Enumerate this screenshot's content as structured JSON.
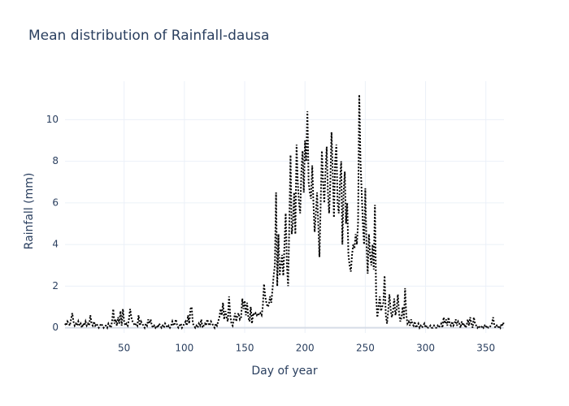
{
  "chart_data": {
    "type": "line",
    "title": "Mean distribution of Rainfall-dausa",
    "xlabel": "Day of year",
    "ylabel": "Rainfall (mm)",
    "color": "#000000",
    "dash": "dot",
    "grid": true,
    "xlim": [
      1,
      365
    ],
    "ylim": [
      -0.25,
      11.85
    ],
    "xticks": [
      50,
      100,
      150,
      200,
      250,
      300,
      350
    ],
    "yticks": [
      0,
      2,
      4,
      6,
      8,
      10
    ],
    "x": [
      1,
      2,
      3,
      4,
      5,
      6,
      7,
      8,
      9,
      10,
      11,
      12,
      13,
      14,
      15,
      16,
      17,
      18,
      19,
      20,
      21,
      22,
      23,
      24,
      25,
      26,
      27,
      28,
      29,
      30,
      31,
      32,
      33,
      34,
      35,
      36,
      37,
      38,
      39,
      40,
      41,
      42,
      43,
      44,
      45,
      46,
      47,
      48,
      49,
      50,
      51,
      52,
      53,
      54,
      55,
      56,
      57,
      58,
      59,
      60,
      61,
      62,
      63,
      64,
      65,
      66,
      67,
      68,
      69,
      70,
      71,
      72,
      73,
      74,
      75,
      76,
      77,
      78,
      79,
      80,
      81,
      82,
      83,
      84,
      85,
      86,
      87,
      88,
      89,
      90,
      91,
      92,
      93,
      94,
      95,
      96,
      97,
      98,
      99,
      100,
      101,
      102,
      103,
      104,
      105,
      106,
      107,
      108,
      109,
      110,
      111,
      112,
      113,
      114,
      115,
      116,
      117,
      118,
      119,
      120,
      121,
      122,
      123,
      124,
      125,
      126,
      127,
      128,
      129,
      130,
      131,
      132,
      133,
      134,
      135,
      136,
      137,
      138,
      139,
      140,
      141,
      142,
      143,
      144,
      145,
      146,
      147,
      148,
      149,
      150,
      151,
      152,
      153,
      154,
      155,
      156,
      157,
      158,
      159,
      160,
      161,
      162,
      163,
      164,
      165,
      166,
      167,
      168,
      169,
      170,
      171,
      172,
      173,
      174,
      175,
      176,
      177,
      178,
      179,
      180,
      181,
      182,
      183,
      184,
      185,
      186,
      187,
      188,
      189,
      190,
      191,
      192,
      193,
      194,
      195,
      196,
      197,
      198,
      199,
      200,
      201,
      202,
      203,
      204,
      205,
      206,
      207,
      208,
      209,
      210,
      211,
      212,
      213,
      214,
      215,
      216,
      217,
      218,
      219,
      220,
      221,
      222,
      223,
      224,
      225,
      226,
      227,
      228,
      229,
      230,
      231,
      232,
      233,
      234,
      235,
      236,
      237,
      238,
      239,
      240,
      241,
      242,
      243,
      244,
      245,
      246,
      247,
      248,
      249,
      250,
      251,
      252,
      253,
      254,
      255,
      256,
      257,
      258,
      259,
      260,
      261,
      262,
      263,
      264,
      265,
      266,
      267,
      268,
      269,
      270,
      271,
      272,
      273,
      274,
      275,
      276,
      277,
      278,
      279,
      280,
      281,
      282,
      283,
      284,
      285,
      286,
      287,
      288,
      289,
      290,
      291,
      292,
      293,
      294,
      295,
      296,
      297,
      298,
      299,
      300,
      301,
      302,
      303,
      304,
      305,
      306,
      307,
      308,
      309,
      310,
      311,
      312,
      313,
      314,
      315,
      316,
      317,
      318,
      319,
      320,
      321,
      322,
      323,
      324,
      325,
      326,
      327,
      328,
      329,
      330,
      331,
      332,
      333,
      334,
      335,
      336,
      337,
      338,
      339,
      340,
      341,
      342,
      343,
      344,
      345,
      346,
      347,
      348,
      349,
      350,
      351,
      352,
      353,
      354,
      355,
      356,
      357,
      358,
      359,
      360,
      361,
      362,
      363,
      364,
      365
    ],
    "values": [
      0.2,
      0.1,
      0.3,
      0.2,
      0.1,
      0.4,
      0.7,
      0.3,
      0.1,
      0.2,
      0.1,
      0.3,
      0.1,
      0.2,
      0.0,
      0.2,
      0.1,
      0.3,
      0.1,
      0.2,
      0.1,
      0.6,
      0.2,
      0.1,
      0.3,
      0.1,
      0.2,
      0.1,
      0.0,
      0.1,
      0.2,
      0.1,
      0.0,
      0.1,
      0.1,
      0.0,
      0.2,
      0.1,
      0.0,
      0.3,
      0.9,
      0.2,
      0.4,
      0.1,
      0.5,
      0.2,
      0.8,
      0.1,
      0.9,
      0.3,
      0.1,
      0.2,
      0.1,
      0.4,
      0.9,
      0.5,
      0.3,
      0.2,
      0.1,
      0.2,
      0.1,
      0.6,
      0.1,
      0.3,
      0.2,
      0.1,
      0.0,
      0.2,
      0.1,
      0.4,
      0.2,
      0.4,
      0.1,
      0.0,
      0.1,
      0.0,
      0.1,
      0.0,
      0.2,
      0.1,
      0.0,
      0.1,
      0.0,
      0.2,
      0.1,
      0.0,
      0.1,
      0.0,
      0.1,
      0.3,
      0.1,
      0.2,
      0.4,
      0.1,
      0.0,
      0.1,
      0.2,
      0.0,
      0.1,
      0.2,
      0.3,
      0.1,
      0.6,
      0.2,
      0.9,
      1.0,
      0.2,
      0.1,
      0.0,
      0.1,
      0.0,
      0.2,
      0.1,
      0.4,
      0.0,
      0.1,
      0.2,
      0.1,
      0.4,
      0.2,
      0.1,
      0.3,
      0.2,
      0.1,
      0.0,
      0.2,
      0.1,
      0.3,
      0.5,
      0.9,
      0.6,
      1.2,
      0.4,
      0.8,
      0.5,
      0.3,
      1.5,
      0.6,
      0.2,
      0.1,
      0.4,
      0.7,
      0.3,
      0.6,
      0.7,
      0.4,
      0.5,
      1.4,
      0.9,
      1.3,
      0.6,
      1.2,
      0.5,
      0.3,
      1.0,
      0.2,
      0.7,
      0.6,
      0.7,
      0.6,
      0.7,
      0.6,
      0.7,
      0.6,
      1.0,
      2.1,
      1.5,
      1.2,
      1.0,
      1.1,
      1.5,
      1.2,
      1.8,
      2.5,
      3.0,
      6.5,
      2.0,
      4.5,
      2.5,
      3.0,
      3.5,
      2.5,
      4.0,
      5.5,
      3.0,
      2.0,
      5.0,
      8.3,
      4.5,
      5.0,
      6.5,
      4.5,
      8.8,
      7.0,
      6.0,
      5.5,
      7.5,
      8.5,
      6.5,
      9.0,
      8.0,
      10.4,
      7.0,
      6.5,
      6.2,
      7.8,
      6.0,
      4.6,
      5.5,
      6.5,
      5.0,
      3.4,
      6.0,
      8.5,
      7.0,
      6.0,
      7.5,
      8.7,
      6.5,
      5.5,
      7.0,
      9.4,
      7.5,
      5.3,
      8.0,
      8.8,
      6.0,
      5.5,
      7.0,
      8.0,
      4.0,
      6.5,
      7.5,
      5.0,
      6.0,
      3.5,
      3.0,
      2.7,
      3.5,
      4.0,
      3.8,
      4.5,
      4.0,
      5.0,
      11.2,
      8.0,
      6.5,
      5.0,
      4.0,
      6.7,
      4.0,
      2.6,
      4.5,
      3.5,
      3.0,
      4.0,
      2.8,
      5.9,
      1.5,
      0.5,
      1.0,
      1.5,
      0.8,
      1.0,
      1.2,
      2.5,
      0.6,
      0.2,
      0.8,
      1.6,
      0.9,
      0.5,
      0.8,
      1.4,
      0.6,
      0.9,
      1.6,
      0.7,
      0.3,
      0.5,
      1.0,
      0.4,
      1.9,
      0.6,
      0.2,
      0.3,
      0.1,
      0.4,
      0.2,
      0.1,
      0.3,
      0.0,
      0.1,
      0.2,
      0.0,
      0.1,
      0.0,
      0.1,
      0.2,
      0.0,
      0.1,
      0.0,
      0.0,
      0.1,
      0.0,
      0.0,
      0.1,
      0.0,
      0.0,
      0.1,
      0.0,
      0.1,
      0.2,
      0.0,
      0.5,
      0.2,
      0.4,
      0.1,
      0.5,
      0.2,
      0.1,
      0.3,
      0.1,
      0.2,
      0.4,
      0.1,
      0.3,
      0.2,
      0.0,
      0.3,
      0.1,
      0.2,
      0.0,
      0.1,
      0.4,
      0.1,
      0.5,
      0.2,
      0.0,
      0.5,
      0.2,
      0.1,
      0.0,
      0.1,
      0.0,
      0.0,
      0.1,
      0.0,
      0.1,
      0.0,
      0.1,
      0.0,
      0.0,
      0.1,
      0.2,
      0.5,
      0.1,
      0.0,
      0.1,
      0.0,
      0.1,
      0.0,
      0.2,
      0.1,
      0.3
    ]
  }
}
